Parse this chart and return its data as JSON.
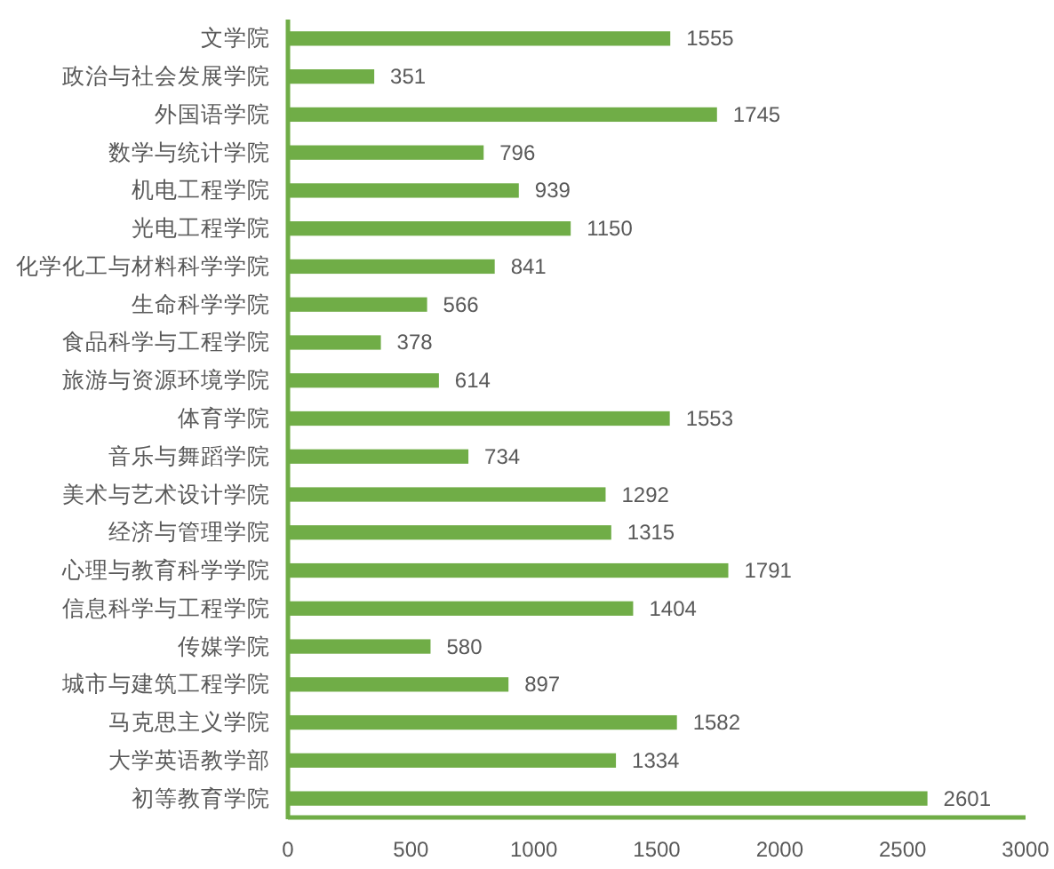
{
  "chart_data": {
    "type": "bar",
    "orientation": "horizontal",
    "categories": [
      "文学院",
      "政治与社会发展学院",
      "外国语学院",
      "数学与统计学院",
      "机电工程学院",
      "光电工程学院",
      "化学化工与材料科学学院",
      "生命科学学院",
      "食品科学与工程学院",
      "旅游与资源环境学院",
      "体育学院",
      "音乐与舞蹈学院",
      "美术与艺术设计学院",
      "经济与管理学院",
      "心理与教育科学学院",
      "信息科学与工程学院",
      "传媒学院",
      "城市与建筑工程学院",
      "马克思主义学院",
      "大学英语教学部",
      "初等教育学院"
    ],
    "values": [
      1555,
      351,
      1745,
      796,
      939,
      1150,
      841,
      566,
      378,
      614,
      1553,
      734,
      1292,
      1315,
      1791,
      1404,
      580,
      897,
      1582,
      1334,
      2601
    ],
    "color": "#70ad47",
    "xlim": [
      0,
      3000
    ],
    "xticks": [
      0,
      500,
      1000,
      1500,
      2000,
      2500,
      3000
    ],
    "data_labels": true
  }
}
